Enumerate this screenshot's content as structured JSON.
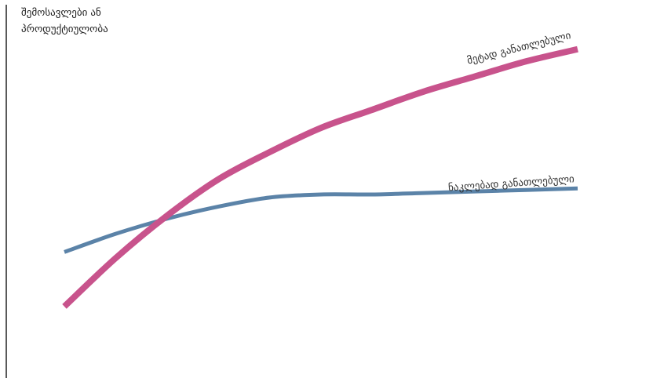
{
  "chart_data": {
    "type": "line",
    "ylabel_lines": [
      "შემოსავლები ან",
      "პროდუქტიულობა"
    ],
    "grid": false,
    "xlim": [
      0,
      10
    ],
    "ylim": [
      0,
      10
    ],
    "series": [
      {
        "name": "ნაკლებად განათლებული",
        "color": "#5b83a8",
        "x": [
          0,
          1,
          2,
          3,
          4,
          5,
          6,
          7,
          8,
          9,
          10
        ],
        "y": [
          3.1,
          3.7,
          4.2,
          4.6,
          4.9,
          5.0,
          5.0,
          5.05,
          5.1,
          5.15,
          5.2
        ]
      },
      {
        "name": "მეტად განათლებული",
        "color": "#c8538c",
        "x": [
          0,
          1,
          2,
          3,
          4,
          5,
          6,
          7,
          8,
          9,
          10
        ],
        "y": [
          1.3,
          2.9,
          4.3,
          5.5,
          6.4,
          7.2,
          7.8,
          8.4,
          8.9,
          9.4,
          9.8
        ]
      }
    ]
  }
}
